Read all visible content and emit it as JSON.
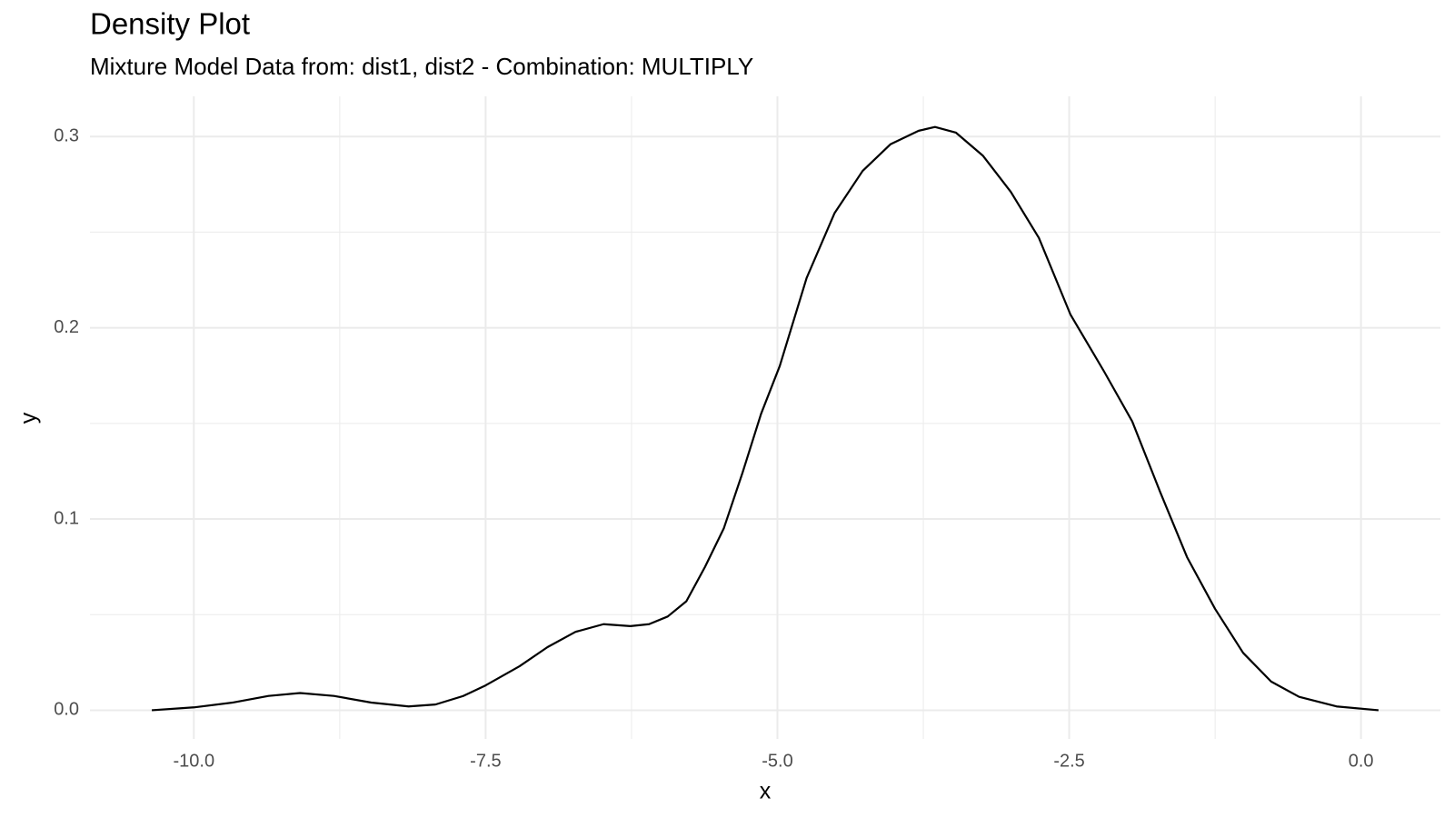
{
  "chart_data": {
    "type": "line",
    "title": "Density Plot",
    "subtitle": "Mixture Model Data from: dist1, dist2 - Combination: MULTIPLY",
    "x_label": "x",
    "y_label": "y",
    "color": "#000000",
    "grid": true,
    "xlim": [
      -10.89,
      0.68
    ],
    "ylim": [
      -0.015,
      0.321
    ],
    "xticks": [
      {
        "value": -10,
        "label": "-10.0"
      },
      {
        "value": -7.5,
        "label": "-7.5"
      },
      {
        "value": -5,
        "label": "-5.0"
      },
      {
        "value": -2.5,
        "label": "-2.5"
      },
      {
        "value": 0,
        "label": "0.0"
      }
    ],
    "yticks": [
      {
        "value": 0,
        "label": "0.0"
      },
      0.1,
      0.2,
      0.3
    ],
    "xminor": [
      -8.75,
      -6.25,
      -3.75,
      -1.25
    ],
    "yminor": [
      0.05,
      0.15,
      0.25
    ],
    "x": [
      -10.36,
      -10.0,
      -9.67,
      -9.36,
      -9.09,
      -8.8,
      -8.48,
      -8.16,
      -7.93,
      -7.69,
      -7.5,
      -7.21,
      -6.97,
      -6.73,
      -6.49,
      -6.26,
      -6.1,
      -5.94,
      -5.78,
      -5.62,
      -5.46,
      -5.3,
      -5.14,
      -4.98,
      -4.75,
      -4.51,
      -4.27,
      -4.03,
      -3.79,
      -3.65,
      -3.47,
      -3.24,
      -3.0,
      -2.76,
      -2.49,
      -2.2,
      -1.96,
      -1.72,
      -1.49,
      -1.25,
      -1.01,
      -0.77,
      -0.53,
      -0.21,
      0.15
    ],
    "values": [
      0.0,
      0.0015,
      0.004,
      0.0075,
      0.009,
      0.0075,
      0.004,
      0.002,
      0.003,
      0.0075,
      0.013,
      0.023,
      0.033,
      0.041,
      0.045,
      0.044,
      0.045,
      0.049,
      0.057,
      0.075,
      0.095,
      0.124,
      0.155,
      0.18,
      0.226,
      0.26,
      0.282,
      0.296,
      0.303,
      0.305,
      0.302,
      0.29,
      0.271,
      0.247,
      0.207,
      0.177,
      0.151,
      0.114,
      0.08,
      0.053,
      0.03,
      0.015,
      0.007,
      0.002,
      0.0
    ]
  }
}
